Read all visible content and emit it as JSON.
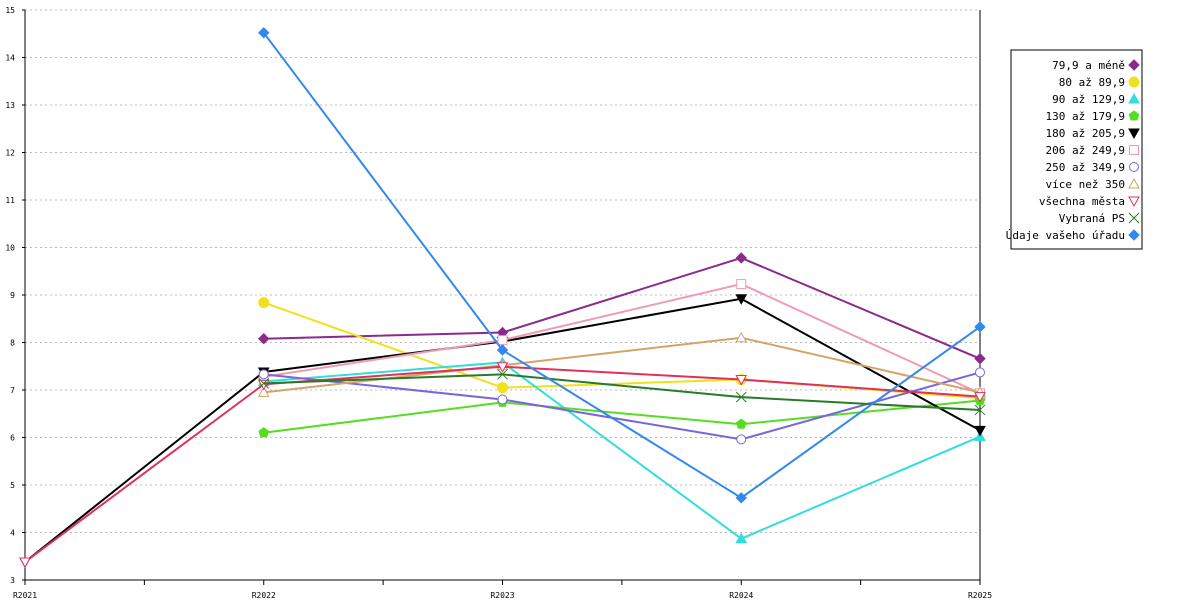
{
  "chart_data": {
    "type": "line",
    "title": "",
    "xlabel": "",
    "ylabel": "",
    "x": [
      "R2021",
      "R2022",
      "R2023",
      "R2024",
      "R2025"
    ],
    "ylim": [
      3,
      15
    ],
    "yticks": [
      3,
      4,
      5,
      6,
      7,
      8,
      9,
      10,
      11,
      12,
      13,
      14,
      15
    ],
    "grid": "horizontal dashed",
    "legend_position": "top-right",
    "series": [
      {
        "name": "79,9 a méně",
        "color": "#8b2a8b",
        "marker": "diamond-filled",
        "values": [
          null,
          8.08,
          8.21,
          9.78,
          7.66
        ]
      },
      {
        "name": "80 až 89,9",
        "color": "#f0e020",
        "marker": "circle-filled",
        "values": [
          null,
          8.84,
          7.05,
          7.22,
          6.83
        ]
      },
      {
        "name": "90 až 129,9",
        "color": "#33dddd",
        "marker": "triangle-up-filled",
        "values": [
          null,
          7.18,
          7.58,
          3.87,
          6.02
        ]
      },
      {
        "name": "130 až 179,9",
        "color": "#55dd22",
        "marker": "pentagon-filled",
        "values": [
          null,
          6.1,
          6.74,
          6.28,
          6.78
        ]
      },
      {
        "name": "180 až 205,9",
        "color": "#000000",
        "marker": "triangle-down-filled",
        "values": [
          3.38,
          7.38,
          8.02,
          8.92,
          6.15
        ]
      },
      {
        "name": "206 až 249,9",
        "color": "#f09bb4",
        "marker": "square-open",
        "values": [
          null,
          7.28,
          8.05,
          9.23,
          6.93
        ]
      },
      {
        "name": "250 až 349,9",
        "color": "#7766dd",
        "marker": "circle-open",
        "values": [
          null,
          7.33,
          6.8,
          5.96,
          7.37
        ]
      },
      {
        "name": "více než 350",
        "color": "#d4a466",
        "marker": "triangle-up-open",
        "values": [
          null,
          6.95,
          7.52,
          8.1,
          6.95
        ]
      },
      {
        "name": "všechna města",
        "color": "#e0305c",
        "marker": "triangle-down-open",
        "values": [
          3.38,
          7.12,
          7.49,
          7.22,
          6.86
        ]
      },
      {
        "name": "Vybraná PS",
        "color": "#2a7a2a",
        "marker": "x",
        "values": [
          null,
          7.14,
          7.33,
          6.85,
          6.58
        ]
      },
      {
        "name": "Údaje vašeho úřadu",
        "color": "#3388ee",
        "marker": "diamond-filled",
        "values": [
          null,
          14.52,
          7.84,
          4.73,
          8.33
        ]
      }
    ]
  }
}
